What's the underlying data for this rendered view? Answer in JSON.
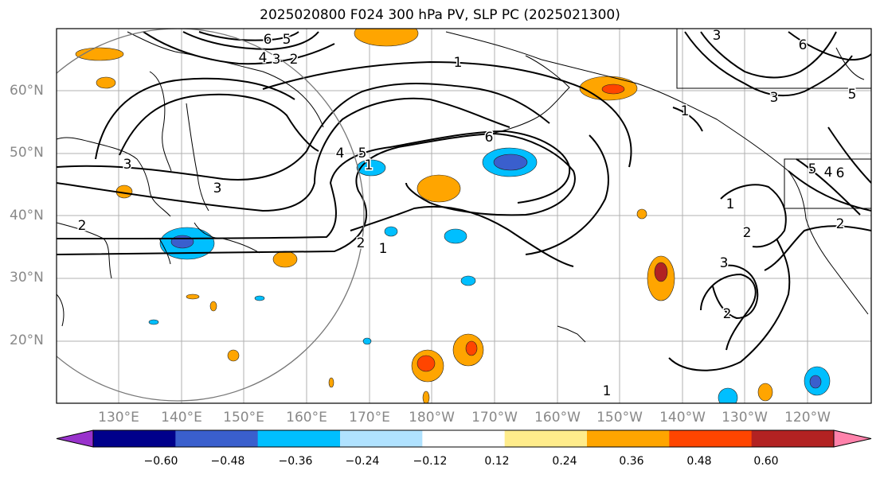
{
  "title": "2025020800 F024 300 hPa PV, SLP PC (2025021300)",
  "lat_labels": [
    "60°N",
    "50°N",
    "40°N",
    "30°N",
    "20°N"
  ],
  "lon_labels": [
    "130°E",
    "140°E",
    "150°E",
    "160°E",
    "170°E",
    "180°W",
    "170°W",
    "160°W",
    "150°W",
    "140°W",
    "130°W",
    "120°W"
  ],
  "colorbar": {
    "ticks": [
      "−0.60",
      "−0.48",
      "−0.36",
      "−0.24",
      "−0.12",
      "0.12",
      "0.24",
      "0.36",
      "0.48",
      "0.60"
    ],
    "colors": [
      "#9932cc",
      "#00008b",
      "#3a5fcd",
      "#00bfff",
      "#b0e2ff",
      "#ffffff",
      "#ffec8b",
      "#ffa500",
      "#ff4500",
      "#b22222",
      "#ff82ab"
    ]
  },
  "contour_labels": [
    "6",
    "5",
    "4",
    "3",
    "2",
    "1",
    "6",
    "5",
    "4",
    "3",
    "1",
    "2",
    "3",
    "1",
    "2",
    "1",
    "2",
    "3",
    "2",
    "5",
    "6",
    "3",
    "1",
    "6",
    "5",
    "4",
    "3",
    "2",
    "1"
  ]
}
